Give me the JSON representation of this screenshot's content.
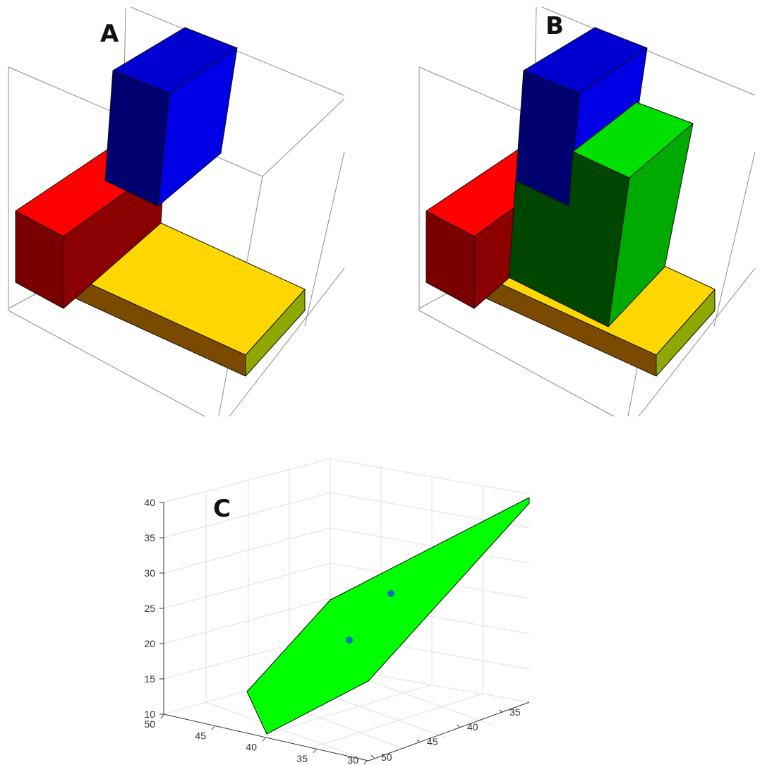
{
  "panels": {
    "a": {
      "label": "A"
    },
    "b": {
      "label": "B"
    },
    "c": {
      "label": "C"
    }
  },
  "colors": {
    "red_top": "#ff0000",
    "red_front": "#7a0000",
    "red_side": "#8b0000",
    "blue_top": "#0000d0",
    "blue_front": "#000070",
    "blue_side": "#0000e6",
    "yellow_top": "#ffd700",
    "yellow_front": "#7a4a00",
    "yellow_side": "#8fa800",
    "green_top": "#00e000",
    "green_front": "#004500",
    "green_side": "#00aa00",
    "plane_fill": "#00ff00",
    "marker": "#0072bd"
  },
  "chart_data": {
    "type": "scatter",
    "title": "",
    "xlabel": "",
    "ylabel": "",
    "zlabel": "",
    "z_ticks": [
      "10",
      "15",
      "20",
      "25",
      "30",
      "35",
      "40"
    ],
    "left_axis_ticks": [
      "50",
      "45",
      "40",
      "35",
      "30"
    ],
    "right_axis_ticks": [
      "50",
      "45",
      "40",
      "35"
    ],
    "grid": true,
    "surface": {
      "name": "",
      "color": "green"
    },
    "points": [
      {
        "value_z": 20.5
      },
      {
        "value_z": 27
      }
    ]
  }
}
